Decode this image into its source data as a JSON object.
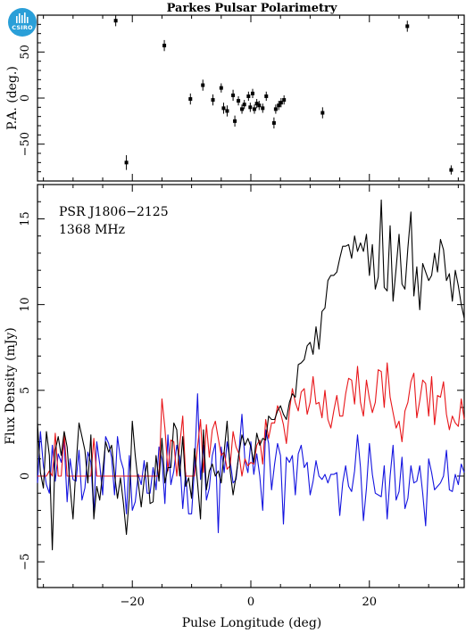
{
  "logo": {
    "text": "CSIRO",
    "color": "#2a9fd8",
    "icon": "csiro-logo-icon"
  },
  "chart_data": [
    {
      "type": "scatter",
      "title": "Parkes Pulsar Polarimetry",
      "ylabel": "P.A. (deg.)",
      "xlim": [
        -36,
        36
      ],
      "ylim": [
        -90,
        90
      ],
      "xticks": [
        -20,
        0,
        20
      ],
      "yticks": [
        -50,
        0,
        50
      ],
      "ytick_labels": [
        "−50",
        "0",
        "50"
      ],
      "marker_color": "#000000",
      "points": [
        {
          "x": -22.8,
          "y": 84,
          "err": 6
        },
        {
          "x": -21.0,
          "y": -70,
          "err": 8
        },
        {
          "x": -14.6,
          "y": 57,
          "err": 6
        },
        {
          "x": -10.2,
          "y": -1,
          "err": 6
        },
        {
          "x": -8.1,
          "y": 14,
          "err": 6
        },
        {
          "x": -6.4,
          "y": -2,
          "err": 6
        },
        {
          "x": -5.0,
          "y": 11,
          "err": 5
        },
        {
          "x": -4.6,
          "y": -11,
          "err": 6
        },
        {
          "x": -4.0,
          "y": -14,
          "err": 6
        },
        {
          "x": -3.0,
          "y": 3,
          "err": 6
        },
        {
          "x": -2.7,
          "y": -25,
          "err": 6
        },
        {
          "x": -2.1,
          "y": -3,
          "err": 5
        },
        {
          "x": -1.5,
          "y": -12,
          "err": 5
        },
        {
          "x": -1.1,
          "y": -7,
          "err": 5
        },
        {
          "x": -0.4,
          "y": 2,
          "err": 5
        },
        {
          "x": -0.1,
          "y": -10,
          "err": 5
        },
        {
          "x": 0.3,
          "y": 5,
          "err": 5
        },
        {
          "x": 0.6,
          "y": -12,
          "err": 5
        },
        {
          "x": 1.0,
          "y": -6,
          "err": 5
        },
        {
          "x": 1.4,
          "y": -8,
          "err": 5
        },
        {
          "x": 2.0,
          "y": -11,
          "err": 5
        },
        {
          "x": 2.6,
          "y": 2,
          "err": 5
        },
        {
          "x": 3.9,
          "y": -27,
          "err": 6
        },
        {
          "x": 4.2,
          "y": -12,
          "err": 5
        },
        {
          "x": 4.7,
          "y": -8,
          "err": 5
        },
        {
          "x": 5.1,
          "y": -5,
          "err": 5
        },
        {
          "x": 5.6,
          "y": -2,
          "err": 5
        },
        {
          "x": 12.1,
          "y": -16,
          "err": 6
        },
        {
          "x": 26.4,
          "y": 78,
          "err": 6
        },
        {
          "x": 33.8,
          "y": -78,
          "err": 5
        }
      ]
    },
    {
      "type": "line",
      "xlabel": "Pulse Longitude (deg)",
      "ylabel": "Flux Density (mJy)",
      "annotations": [
        "PSR J1806−2125",
        "1368 MHz"
      ],
      "xlim": [
        -36,
        36
      ],
      "ylim": [
        -6.5,
        17
      ],
      "xticks": [
        -20,
        0,
        20
      ],
      "yticks": [
        -5,
        0,
        5,
        10,
        15
      ],
      "ytick_labels": [
        "−5",
        "0",
        "5",
        "10",
        "15"
      ],
      "x_start": -36,
      "x_step": 0.5,
      "series": [
        {
          "color": "#000000",
          "values": [
            3.1,
            0.2,
            -0.7,
            2.6,
            1.2,
            -4.3,
            1.5,
            2.3,
            1.2,
            2.6,
            1.7,
            -0.6,
            -2.5,
            0.6,
            3.1,
            2.3,
            1.5,
            -0.4,
            2.4,
            -2.5,
            -0.6,
            -1.4,
            0.2,
            2.0,
            1.4,
            1.8,
            0.1,
            -1.3,
            -0.1,
            -1.6,
            -3.4,
            -1.2,
            3.2,
            1.2,
            -0.4,
            -1.8,
            -0.2,
            0.8,
            -1.6,
            -1.5,
            1.2,
            -0.3,
            2.2,
            -0.4,
            0.5,
            0.5,
            3.1,
            2.7,
            0.0,
            2.3,
            -0.6,
            -0.1,
            -1.3,
            1.6,
            -0.4,
            -2.5,
            2.7,
            -0.8,
            0.3,
            0.7,
            0.0,
            0.3,
            -0.4,
            1.4,
            3.2,
            0.3,
            -1.1,
            0.0,
            1.3,
            2.4,
            1.8,
            2.2,
            1.7,
            0.8,
            2.5,
            1.8,
            2.2,
            2.1,
            3.5,
            3.3,
            3.3,
            3.8,
            4.1,
            3.6,
            3.3,
            4.3,
            4.8,
            4.6,
            6.5,
            6.6,
            6.8,
            7.6,
            7.8,
            7.1,
            8.7,
            7.4,
            9.6,
            9.8,
            11.4,
            11.7,
            11.7,
            11.9,
            12.7,
            13.4,
            13.4,
            13.5,
            12.7,
            14.0,
            13.1,
            13.6,
            13.1,
            14.1,
            11.7,
            13.5,
            10.9,
            11.6,
            16.1,
            11.0,
            10.8,
            14.6,
            10.2,
            12.1,
            14.1,
            11.2,
            10.9,
            13.3,
            15.4,
            10.5,
            12.2,
            9.7,
            12.4,
            11.9,
            11.4,
            11.7,
            13.0,
            11.9,
            13.8,
            13.2,
            11.4,
            11.8,
            10.2,
            12.0,
            11.1,
            10.0,
            9.2,
            8.6,
            8.6,
            7.1,
            6.5,
            6.0,
            5.7,
            8.8,
            6.2,
            8.6,
            5.2,
            3.6,
            6.6,
            4.9,
            6.8,
            6.2,
            6.2,
            4.0,
            5.3,
            5.5,
            4.5,
            4.8,
            3.5,
            2.5,
            3.2,
            2.2,
            1.3,
            2.3,
            1.9,
            1.6,
            0.0,
            2.8,
            0.4,
            2.4,
            0.9,
            1.4,
            3.0,
            -0.1,
            -0.2,
            -0.4,
            1.3,
            1.2,
            -1.7,
            -2.7,
            1.3,
            0.9,
            1.7,
            2.3,
            2.7,
            0.2,
            0.0,
            0.3,
            0.2,
            0.0,
            2.8,
            0.6,
            0.4,
            0.5,
            1.8,
            2.4,
            0.1,
            1.2,
            2.3,
            2.0,
            2.0,
            0.6,
            -0.6,
            -2.2,
            0.5,
            -1.2,
            0.2,
            0.6,
            0.0,
            0.2,
            0.8,
            1.7,
            0.5,
            0.0,
            -0.8,
            -2.1,
            -1.4,
            -1.7,
            -3.7,
            -4.7
          ]
        },
        {
          "color": "#e8161a",
          "values": [
            0.0,
            0.0,
            0.0,
            0.0,
            0.3,
            0.0,
            2.5,
            0.0,
            0.0,
            2.5,
            0.0,
            0.0,
            0.0,
            0.0,
            0.0,
            0.0,
            0.0,
            0.0,
            0.0,
            2.2,
            0.0,
            0.0,
            0.0,
            0.0,
            0.0,
            0.0,
            0.0,
            0.0,
            0.0,
            0.0,
            0.0,
            0.0,
            0.0,
            0.0,
            0.0,
            0.0,
            0.0,
            0.0,
            0.0,
            0.0,
            0.0,
            0.0,
            4.5,
            2.8,
            0.3,
            2.1,
            2.0,
            0.0,
            1.8,
            3.5,
            0.0,
            0.0,
            0.0,
            0.0,
            1.7,
            3.3,
            0.2,
            3.0,
            1.1,
            2.7,
            3.2,
            2.2,
            1.2,
            1.4,
            0.4,
            0.6,
            2.6,
            1.7,
            1.3,
            0.0,
            1.0,
            0.6,
            0.8,
            0.7,
            1.8,
            2.1,
            0.7,
            3.3,
            2.2,
            3.1,
            3.1,
            4.1,
            3.7,
            3.0,
            1.9,
            3.8,
            5.1,
            4.3,
            3.8,
            4.9,
            5.1,
            3.6,
            4.3,
            5.8,
            4.2,
            4.3,
            3.4,
            5.0,
            3.3,
            2.8,
            3.8,
            4.7,
            3.5,
            3.5,
            4.8,
            5.7,
            5.6,
            4.2,
            6.4,
            4.3,
            3.5,
            5.6,
            4.5,
            3.7,
            4.3,
            6.2,
            6.1,
            4.0,
            6.6,
            4.6,
            3.7,
            2.8,
            3.2,
            2.0,
            3.8,
            4.3,
            5.5,
            6.0,
            3.4,
            4.4,
            5.6,
            5.4,
            3.5,
            5.8,
            3.0,
            4.7,
            4.6,
            5.5,
            3.6,
            2.7,
            3.5,
            3.1,
            2.9,
            4.5,
            3.3,
            4.0,
            3.6,
            4.0,
            3.9,
            3.7,
            3.1,
            3.7,
            3.3,
            3.0,
            1.5,
            2.5,
            2.1,
            2.6,
            2.3,
            2.5,
            2.5,
            3.4,
            2.2,
            1.8,
            3.2,
            1.2,
            0.0,
            0.0,
            0.0,
            1.2,
            1.1,
            0.0,
            0.0,
            0.0,
            0.0,
            0.0,
            0.0,
            0.0,
            0.0,
            0.0,
            0.0,
            0.0,
            0.0,
            0.0,
            0.0,
            0.0,
            0.0,
            0.0,
            0.0,
            0.0,
            0.0,
            0.0,
            0.0,
            0.0,
            0.0,
            0.0,
            0.0,
            0.0,
            0.0,
            0.0,
            0.0,
            0.0,
            0.0,
            0.0,
            0.0,
            0.0,
            2.0,
            0.0,
            0.0,
            0.0,
            0.0,
            0.0,
            0.0,
            0.0,
            0.0,
            0.0,
            0.0,
            0.0,
            0.0,
            0.0,
            0.0,
            0.3,
            1.3,
            1.0,
            2.1,
            1.9,
            1.5,
            2.2,
            0.9
          ]
        },
        {
          "color": "#1414e0",
          "values": [
            -0.4,
            2.6,
            0.6,
            -0.5,
            -1.0,
            1.8,
            -0.3,
            1.3,
            0.8,
            2.0,
            -1.5,
            1.0,
            -0.2,
            -0.3,
            1.5,
            -1.4,
            -0.7,
            1.4,
            0.8,
            -2.2,
            2.0,
            0.7,
            -1.1,
            2.3,
            1.9,
            1.1,
            -1.1,
            2.3,
            1.0,
            0.4,
            -2.2,
            1.2,
            -2.0,
            -1.5,
            0.1,
            -0.5,
            0.9,
            -1.0,
            -1.0,
            0.5,
            -0.8,
            1.7,
            1.0,
            -1.6,
            2.4,
            -0.5,
            0.3,
            1.8,
            1.1,
            -1.9,
            0.2,
            -2.2,
            -2.2,
            0.5,
            4.8,
            -0.2,
            1.8,
            -1.4,
            -0.7,
            1.2,
            1.9,
            -3.3,
            1.7,
            0.2,
            2.0,
            0.9,
            -0.4,
            -0.2,
            1.4,
            3.6,
            0.9,
            0.2,
            2.0,
            0.1,
            1.3,
            0.0,
            -2.0,
            2.7,
            1.9,
            -0.8,
            0.7,
            1.9,
            1.2,
            -2.8,
            1.1,
            0.8,
            1.2,
            -1.1,
            1.3,
            1.8,
            0.5,
            0.8,
            -1.1,
            -0.3,
            0.9,
            0.0,
            -0.2,
            0.1,
            -0.4,
            0.1,
            0.1,
            0.2,
            -2.3,
            -0.4,
            0.6,
            -0.6,
            -0.9,
            0.3,
            2.4,
            0.5,
            -2.6,
            -0.7,
            1.9,
            0.1,
            -1.0,
            -1.1,
            -1.2,
            0.6,
            -2.5,
            0.0,
            1.8,
            -1.4,
            -0.9,
            1.1,
            -1.9,
            -1.3,
            0.6,
            -0.4,
            -0.3,
            0.6,
            -1.0,
            -2.9,
            1.0,
            0.2,
            -0.8,
            -0.6,
            -0.4,
            0.0,
            1.5,
            -0.8,
            -0.9,
            0.1,
            -0.5,
            0.7,
            0.2,
            -1.7,
            -1.8,
            -0.7,
            1.1,
            -2.3,
            0.9,
            -1.8,
            -1.6,
            -3.0,
            -1.1,
            0.5,
            -2.6,
            -2.1,
            0.3,
            0.8,
            -0.8,
            -1.6,
            -1.2,
            -1.3,
            -1.5,
            -1.8,
            -0.4,
            -0.8,
            -1.5,
            -1.7,
            -0.6,
            -1.8,
            -1.4,
            -0.8,
            -0.6,
            -1.1,
            -0.4,
            -1.5,
            -1.3,
            0.6,
            0.1,
            0.8,
            -0.7,
            -0.7,
            1.0,
            1.5,
            0.6,
            0.7,
            -0.2,
            1.6,
            0.3,
            -0.5,
            0.9,
            1.4,
            -0.6,
            1.1,
            0.6,
            1.7,
            0.4,
            0.0,
            0.0,
            1.2,
            1.6,
            1.0,
            0.8,
            1.8,
            2.6,
            0.2,
            -1.9,
            -0.1,
            1.6,
            -0.6,
            1.1,
            -0.1,
            -0.5,
            1.3,
            1.9,
            1.5,
            1.4,
            -0.4,
            1.0,
            1.9,
            -0.8,
            1.1,
            0.4,
            -0.5,
            1.3,
            0.5
          ]
        }
      ]
    }
  ]
}
